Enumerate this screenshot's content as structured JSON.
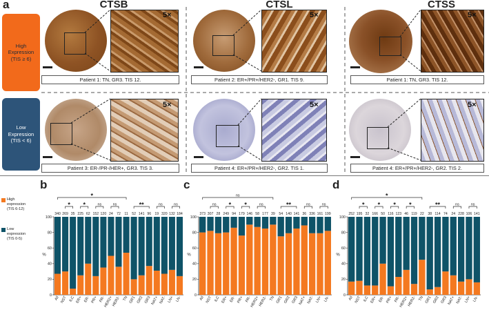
{
  "panel_a": {
    "letter": "a",
    "columns": [
      "CTSB",
      "CTSL",
      "CTSS"
    ],
    "rows": [
      {
        "label": "High Expression (TIS ≥ 6)",
        "label_lines": [
          "High",
          "Expression",
          "(TIS ≥ 6)"
        ],
        "color": "#f26a1b",
        "text_color": "#1e2b3a"
      },
      {
        "label": "Low Expression (TIS < 6)",
        "label_lines": [
          "Low",
          "Expression",
          "(TIS < 6)"
        ],
        "color": "#2d5479",
        "text_color": "#ffffff"
      }
    ],
    "magnification": "5×",
    "captions": [
      [
        "Patient 1: TN, GR3. TIS 12.",
        "Patient 2: ER+/PR+/HER2-, GR1. TIS 9.",
        "Patient 1: TN, GR3. TIS 12."
      ],
      [
        "Patient 3: ER-/PR-/HER+, GR3. TIS 3.",
        "Patient 4: ER+/PR+/HER2-, GR2. TIS 1.",
        "Patient 4: ER+/PR+/HER2-, GR2. TIS 2."
      ]
    ],
    "stain_colors": {
      "high": "#9a5a25",
      "high_dark": "#6e3c14",
      "low": "#c9cbe0",
      "low_nuclei": "#6d6fa8",
      "brown_spot": "#8a5530"
    }
  },
  "legend": {
    "high_label": "High expression (TIS 6-12)",
    "high_lines": [
      "High",
      "expression",
      "(TIS 6-12)"
    ],
    "low_label": "Low expression (TIS 0-5)",
    "low_lines": [
      "Low",
      "expression",
      "(TIS 0-5)"
    ],
    "high_color": "#f47920",
    "low_color": "#0f5368"
  },
  "chart_data": [
    {
      "panel": "b",
      "type": "bar",
      "stacked": true,
      "ylabel": "%",
      "ylim": [
        0,
        100
      ],
      "yticks": [
        0,
        20,
        40,
        60,
        80,
        100
      ],
      "categories": [
        "All",
        "NST",
        "ILC",
        "ER+",
        "ER-",
        "PR+",
        "PR-",
        "HER2+",
        "HER2-",
        "TN",
        "GR1",
        "GR2",
        "GR3",
        "NAT+",
        "NAT-",
        "LN+",
        "LN-"
      ],
      "n": [
        "340",
        "269",
        "35",
        "225",
        "62",
        "152",
        "120",
        "24",
        "72",
        "11",
        "52",
        "141",
        "96",
        "19",
        "320",
        "132",
        "184"
      ],
      "series": [
        {
          "name": "High expression (TIS 6-12)",
          "values": [
            27,
            30,
            8,
            25,
            40,
            24,
            35,
            50,
            36,
            54,
            20,
            25,
            37,
            31,
            27,
            32,
            24
          ]
        },
        {
          "name": "Low expression (TIS 0-5)",
          "values": [
            73,
            70,
            92,
            75,
            60,
            76,
            65,
            50,
            64,
            46,
            80,
            75,
            63,
            69,
            73,
            68,
            76
          ]
        }
      ],
      "significance": [
        {
          "from": 0,
          "to": 9,
          "label": "*",
          "level": 2
        },
        {
          "from": 1,
          "to": 2,
          "label": "*",
          "level": 1
        },
        {
          "from": 3,
          "to": 4,
          "label": "*",
          "level": 1
        },
        {
          "from": 5,
          "to": 6,
          "label": "ns",
          "level": 1
        },
        {
          "from": 7,
          "to": 8,
          "label": "ns",
          "level": 1
        },
        {
          "from": 10,
          "to": 12,
          "label": "**",
          "level": 1
        },
        {
          "from": 13,
          "to": 14,
          "label": "ns",
          "level": 1
        },
        {
          "from": 15,
          "to": 16,
          "label": "ns",
          "level": 1
        }
      ]
    },
    {
      "panel": "c",
      "type": "bar",
      "stacked": true,
      "ylabel": "%",
      "ylim": [
        0,
        100
      ],
      "yticks": [
        0,
        20,
        40,
        60,
        80,
        100
      ],
      "categories": [
        "All",
        "NST",
        "ILC",
        "ER+",
        "ER-",
        "PR+",
        "PR-",
        "HER2+",
        "HER2-",
        "TN",
        "GR1",
        "GR2",
        "GR3",
        "NAT+",
        "NAT-",
        "LN+",
        "LN-"
      ],
      "n": [
        "373",
        "307",
        "28",
        "249",
        "94",
        "179",
        "146",
        "58",
        "177",
        "39",
        "54",
        "140",
        "141",
        "36",
        "336",
        "161",
        "199"
      ],
      "series": [
        {
          "name": "High expression (TIS 6-12)",
          "values": [
            80,
            82,
            79,
            80,
            86,
            76,
            90,
            87,
            85,
            90,
            75,
            79,
            85,
            89,
            79,
            79,
            82
          ]
        },
        {
          "name": "Low expression (TIS 0-5)",
          "values": [
            20,
            18,
            21,
            20,
            14,
            24,
            10,
            13,
            15,
            10,
            25,
            21,
            15,
            11,
            21,
            21,
            18
          ]
        }
      ],
      "significance": [
        {
          "from": 0,
          "to": 9,
          "label": "ns",
          "level": 2
        },
        {
          "from": 1,
          "to": 2,
          "label": "ns",
          "level": 1
        },
        {
          "from": 3,
          "to": 4,
          "label": "*",
          "level": 1
        },
        {
          "from": 5,
          "to": 6,
          "label": "*",
          "level": 1
        },
        {
          "from": 7,
          "to": 8,
          "label": "ns",
          "level": 1
        },
        {
          "from": 10,
          "to": 12,
          "label": "**",
          "level": 1
        },
        {
          "from": 13,
          "to": 14,
          "label": "ns",
          "level": 1
        },
        {
          "from": 15,
          "to": 16,
          "label": "ns",
          "level": 1
        }
      ]
    },
    {
      "panel": "d",
      "type": "bar",
      "stacked": true,
      "ylabel": "%",
      "ylim": [
        0,
        100
      ],
      "yticks": [
        0,
        20,
        40,
        60,
        80,
        100
      ],
      "categories": [
        "All",
        "NST",
        "ILC",
        "ER+",
        "ER-",
        "PR+",
        "PR-",
        "HER2+",
        "HER2-",
        "TN",
        "GR1",
        "GR2",
        "GR3",
        "NAT+",
        "NAT-",
        "LN+",
        "LN-"
      ],
      "n": [
        "252",
        "195",
        "32",
        "166",
        "50",
        "116",
        "123",
        "46",
        "119",
        "22",
        "38",
        "114",
        "74",
        "24",
        "228",
        "106",
        "141"
      ],
      "series": [
        {
          "name": "High expression (TIS 6-12)",
          "values": [
            17,
            18,
            12,
            12,
            40,
            11,
            23,
            32,
            14,
            45,
            7,
            10,
            30,
            25,
            17,
            20,
            16
          ]
        },
        {
          "name": "Low expression (TIS 0-5)",
          "values": [
            83,
            82,
            88,
            88,
            60,
            89,
            77,
            68,
            86,
            55,
            93,
            90,
            70,
            75,
            83,
            80,
            84
          ]
        }
      ],
      "significance": [
        {
          "from": 0,
          "to": 9,
          "label": "*",
          "level": 2
        },
        {
          "from": 1,
          "to": 2,
          "label": "*",
          "level": 1
        },
        {
          "from": 3,
          "to": 4,
          "label": "*",
          "level": 1
        },
        {
          "from": 5,
          "to": 6,
          "label": "*",
          "level": 1
        },
        {
          "from": 7,
          "to": 8,
          "label": "*",
          "level": 1
        },
        {
          "from": 10,
          "to": 12,
          "label": "**",
          "level": 1
        },
        {
          "from": 13,
          "to": 14,
          "label": "ns",
          "level": 1
        },
        {
          "from": 15,
          "to": 16,
          "label": "ns",
          "level": 1
        }
      ]
    }
  ]
}
